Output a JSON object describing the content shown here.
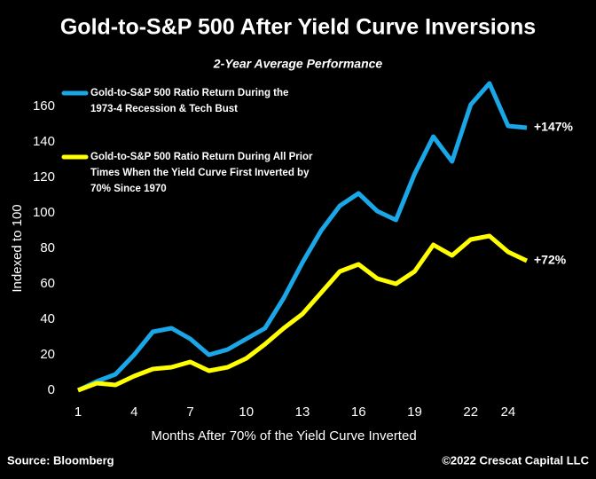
{
  "chart_data": {
    "type": "line",
    "title": "Gold-to-S&P 500 After Yield Curve Inversions",
    "subtitle": "2-Year Average Performance",
    "x_label": "Months After 70% of the Yield Curve Inverted",
    "y_label": "Indexed to 100",
    "x": [
      1,
      2,
      3,
      4,
      5,
      6,
      7,
      8,
      9,
      10,
      11,
      12,
      13,
      14,
      15,
      16,
      17,
      18,
      19,
      20,
      21,
      22,
      23,
      24,
      25
    ],
    "series": [
      {
        "name": "Gold-to-S&P 500 Ratio Return During the 1973-4 Recession & Tech Bust",
        "color": "#1aa7e8",
        "values": [
          0,
          5,
          9,
          20,
          33,
          35,
          29,
          20,
          23,
          29,
          35,
          52,
          72,
          90,
          104,
          111,
          101,
          96,
          122,
          143,
          129,
          161,
          173,
          149,
          148
        ]
      },
      {
        "name": "Gold-to-S&P 500 Ratio Return During All Prior Times When the Yield Curve First Inverted by 70% Since 1970",
        "color": "#ffff00",
        "values": [
          0,
          4,
          3,
          8,
          12,
          13,
          16,
          11,
          13,
          18,
          26,
          35,
          43,
          55,
          67,
          71,
          63,
          60,
          67,
          82,
          76,
          85,
          87,
          78,
          73
        ]
      }
    ],
    "annotations": [
      "+147%",
      "+72%"
    ],
    "xlim": [
      1,
      25
    ],
    "xticks": [
      1,
      4,
      7,
      10,
      13,
      16,
      19,
      22,
      24
    ],
    "ylim": [
      0,
      175
    ],
    "yticks": [
      0,
      20,
      40,
      60,
      80,
      100,
      120,
      140,
      160
    ],
    "source": "Source: Bloomberg",
    "credit": "©2022 Crescat Capital LLC"
  }
}
